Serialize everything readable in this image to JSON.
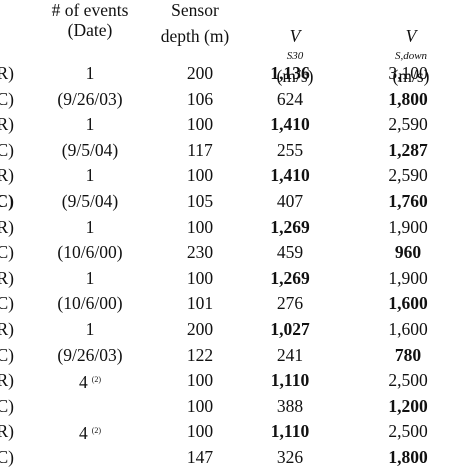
{
  "header": {
    "events_line1": "# of events",
    "events_line2": "(Date)",
    "sensor_line1": "Sensor",
    "sensor_line2": "depth (m)",
    "vs30_v": "V",
    "vs30_sub": "S30",
    "vs30_unit": "(m/s)",
    "vsdown_v": "V",
    "vsdown_sub": "S,down",
    "vsdown_unit": "(m/s)"
  },
  "rows": [
    {
      "id": "R)",
      "events": "1",
      "note": "",
      "depth": "200",
      "vs30": "1,136",
      "vs30_bold": true,
      "vsdown": "3,100",
      "vsdown_bold": false
    },
    {
      "id": "C)",
      "events": "(9/26/03)",
      "note": "",
      "depth": "106",
      "vs30": "624",
      "vs30_bold": false,
      "vsdown": "1,800",
      "vsdown_bold": true
    },
    {
      "id": "R)",
      "events": "1",
      "note": "",
      "depth": "100",
      "vs30": "1,410",
      "vs30_bold": true,
      "vsdown": "2,590",
      "vsdown_bold": false
    },
    {
      "id": "C)",
      "events": "(9/5/04)",
      "note": "",
      "depth": "117",
      "vs30": "255",
      "vs30_bold": false,
      "vsdown": "1,287",
      "vsdown_bold": true
    },
    {
      "id": "R)",
      "events": "1",
      "note": "",
      "depth": "100",
      "vs30": "1,410",
      "vs30_bold": true,
      "vsdown": "2,590",
      "vsdown_bold": false
    },
    {
      "id": "C)",
      "events": "(9/5/04)",
      "note": "",
      "depth": "105",
      "vs30": "407",
      "vs30_bold": false,
      "vsdown": "1,760",
      "vsdown_bold": true,
      "id_bold": true
    },
    {
      "id": "R)",
      "events": "1",
      "note": "",
      "depth": "100",
      "vs30": "1,269",
      "vs30_bold": true,
      "vsdown": "1,900",
      "vsdown_bold": false
    },
    {
      "id": "C)",
      "events": "(10/6/00)",
      "note": "",
      "depth": "230",
      "vs30": "459",
      "vs30_bold": false,
      "vsdown": "960",
      "vsdown_bold": true
    },
    {
      "id": "R)",
      "events": "1",
      "note": "",
      "depth": "100",
      "vs30": "1,269",
      "vs30_bold": true,
      "vsdown": "1,900",
      "vsdown_bold": false
    },
    {
      "id": "C)",
      "events": "(10/6/00)",
      "note": "",
      "depth": "101",
      "vs30": "276",
      "vs30_bold": false,
      "vsdown": "1,600",
      "vsdown_bold": true
    },
    {
      "id": "R)",
      "events": "1",
      "note": "",
      "depth": "200",
      "vs30": "1,027",
      "vs30_bold": true,
      "vsdown": "1,600",
      "vsdown_bold": false
    },
    {
      "id": "C)",
      "events": "(9/26/03)",
      "note": "",
      "depth": "122",
      "vs30": "241",
      "vs30_bold": false,
      "vsdown": "780",
      "vsdown_bold": true
    },
    {
      "id": "R)",
      "events": "4",
      "note": "(2)",
      "depth": "100",
      "vs30": "1,110",
      "vs30_bold": true,
      "vsdown": "2,500",
      "vsdown_bold": false
    },
    {
      "id": "C)",
      "events": "",
      "note": "",
      "depth": "100",
      "vs30": "388",
      "vs30_bold": false,
      "vsdown": "1,200",
      "vsdown_bold": true
    },
    {
      "id": "R)",
      "events": "4",
      "note": "(2)",
      "depth": "100",
      "vs30": "1,110",
      "vs30_bold": true,
      "vsdown": "2,500",
      "vsdown_bold": false
    },
    {
      "id": "C)",
      "events": "",
      "note": "",
      "depth": "147",
      "vs30": "326",
      "vs30_bold": false,
      "vsdown": "1,800",
      "vsdown_bold": true
    }
  ]
}
